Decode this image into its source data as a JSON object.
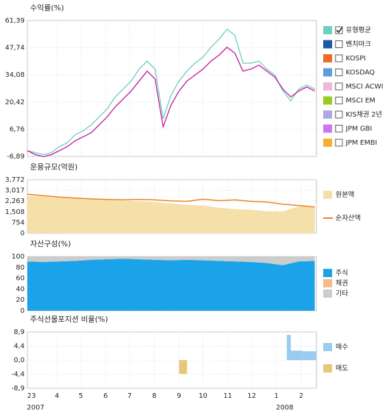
{
  "x_axis": {
    "xlim": [
      0,
      362
    ],
    "xticks": [
      {
        "value": 0,
        "label": "23"
      },
      {
        "value": 37,
        "label": "4"
      },
      {
        "value": 67,
        "label": "5"
      },
      {
        "value": 98,
        "label": "6"
      },
      {
        "value": 128,
        "label": "7"
      },
      {
        "value": 159,
        "label": "8"
      },
      {
        "value": 190,
        "label": "9"
      },
      {
        "value": 220,
        "label": "10"
      },
      {
        "value": 251,
        "label": "11"
      },
      {
        "value": 281,
        "label": "12"
      },
      {
        "value": 312,
        "label": "1"
      },
      {
        "value": 343,
        "label": "2"
      }
    ],
    "year_labels": [
      {
        "value": 0,
        "label": "2007"
      },
      {
        "value": 312,
        "label": "2008"
      }
    ]
  },
  "chart_data": [
    {
      "type": "line",
      "title": "수익률(%)",
      "ylim": [
        -6.89,
        61.39
      ],
      "yticks": [
        {
          "value": 61.39,
          "label": "61,39"
        },
        {
          "value": 47.74,
          "label": "47,74"
        },
        {
          "value": 34.08,
          "label": "34,08"
        },
        {
          "value": 20.42,
          "label": "20,42"
        },
        {
          "value": 6.76,
          "label": "6,76"
        },
        {
          "value": -6.89,
          "label": "-6,89"
        }
      ],
      "x": [
        0,
        10,
        20,
        30,
        40,
        50,
        60,
        70,
        80,
        90,
        100,
        110,
        120,
        130,
        140,
        150,
        160,
        170,
        180,
        190,
        200,
        210,
        220,
        230,
        240,
        250,
        260,
        270,
        280,
        290,
        300,
        310,
        320,
        330,
        340,
        350,
        360
      ],
      "series": [
        {
          "name": "유형평균",
          "color": "#6fcfbf",
          "checked": true,
          "values": [
            -4,
            -5,
            -6,
            -5,
            -2,
            0,
            4,
            6,
            9,
            13,
            17,
            23,
            27,
            31,
            37,
            41,
            37,
            12,
            24,
            31,
            36,
            40,
            43,
            48,
            52,
            57,
            54,
            40,
            40,
            41,
            37,
            34,
            26,
            21,
            27,
            29,
            27
          ]
        },
        {
          "color": "#c21f9e",
          "values": [
            -4,
            -6,
            -7,
            -6,
            -4,
            -2,
            1,
            3,
            5,
            9,
            13,
            18,
            22,
            26,
            31,
            36,
            32,
            8,
            19,
            26,
            31,
            34,
            37,
            41,
            44,
            48,
            45,
            36,
            37,
            39,
            36,
            33,
            27,
            23,
            26,
            28,
            26
          ]
        }
      ],
      "legend_items": [
        {
          "name": "벤치마크",
          "color": "#1a5aa0",
          "checked": false
        },
        {
          "name": "KOSPI",
          "color": "#f06a28",
          "checked": false
        },
        {
          "name": "KOSDAQ",
          "color": "#5a9fd8",
          "checked": false
        },
        {
          "name": "MSCI ACWI",
          "color": "#f0b8d8",
          "checked": false
        },
        {
          "name": "MSCI EM",
          "color": "#99cc22",
          "checked": false
        },
        {
          "name": "KIS채권 2년",
          "color": "#b0a8e0",
          "checked": false
        },
        {
          "name": "JPM GBI",
          "color": "#cc77ee",
          "checked": false
        },
        {
          "name": "JPM EMBI",
          "color": "#f5b030",
          "checked": false
        }
      ]
    },
    {
      "type": "area_line",
      "title": "운용규모(억원)",
      "ylim": [
        0,
        3772
      ],
      "yticks": [
        {
          "value": 3772,
          "label": "3,772"
        },
        {
          "value": 3017,
          "label": "3,017"
        },
        {
          "value": 2263,
          "label": "2,263"
        },
        {
          "value": 1508,
          "label": "1,508"
        },
        754,
        0
      ],
      "x": [
        0,
        20,
        40,
        60,
        80,
        100,
        120,
        140,
        160,
        180,
        200,
        220,
        240,
        260,
        280,
        300,
        320,
        340,
        360
      ],
      "series": [
        {
          "name": "원본액",
          "color": "#f6e0aa",
          "kind": "area",
          "values": [
            2650,
            2600,
            2500,
            2450,
            2400,
            2350,
            2300,
            2250,
            2200,
            2100,
            2000,
            1950,
            1800,
            1700,
            1650,
            1550,
            1550,
            1900,
            1900
          ]
        },
        {
          "name": "순자산액",
          "color": "#ef7d1a",
          "kind": "line",
          "values": [
            2750,
            2650,
            2550,
            2480,
            2420,
            2380,
            2350,
            2380,
            2350,
            2280,
            2250,
            2400,
            2300,
            2350,
            2250,
            2200,
            2050,
            1950,
            1850
          ]
        }
      ]
    },
    {
      "type": "stacked_area",
      "title": "자산구성(%)",
      "ylim": [
        0,
        100
      ],
      "yticks": [
        100,
        80,
        60,
        40,
        20,
        0
      ],
      "x": [
        0,
        20,
        40,
        60,
        80,
        100,
        120,
        140,
        160,
        180,
        200,
        220,
        240,
        260,
        280,
        300,
        320,
        340,
        360
      ],
      "series": [
        {
          "name": "주식",
          "color": "#1aa3e8",
          "values": [
            91,
            90,
            91,
            92,
            94,
            95,
            96,
            95,
            94,
            93,
            94,
            93,
            92,
            91,
            90,
            88,
            84,
            91,
            92
          ]
        },
        {
          "name": "채권",
          "color": "#f6bb8a",
          "values": [
            0,
            0,
            0,
            0,
            0,
            0,
            0,
            0,
            0,
            0,
            0,
            0,
            0,
            0,
            0,
            0,
            0,
            0,
            0
          ]
        },
        {
          "name": "기타",
          "color": "#cccccc",
          "values": [
            9,
            10,
            9,
            8,
            6,
            5,
            4,
            5,
            6,
            7,
            6,
            7,
            8,
            9,
            10,
            12,
            16,
            9,
            8
          ]
        }
      ]
    },
    {
      "type": "range_bar",
      "title": "주식선물포지션 비율(%)",
      "ylim": [
        -8.9,
        8.9
      ],
      "yticks": [
        {
          "value": 8.9,
          "label": "8,9"
        },
        {
          "value": 4.4,
          "label": "4,4"
        },
        {
          "value": 0,
          "label": "0,0"
        },
        {
          "value": -4.4,
          "label": "-4,4"
        },
        {
          "value": -8.9,
          "label": "-8,9"
        }
      ],
      "series": [
        {
          "name": "매수",
          "color": "#99ccf0",
          "x": [
            325,
            330,
            345
          ],
          "x_end": [
            330,
            345,
            362
          ],
          "values": [
            8.0,
            3.0,
            2.8
          ]
        },
        {
          "name": "매도",
          "color": "#e8c878",
          "x": [
            190
          ],
          "x_end": [
            200
          ],
          "values": [
            -4.4
          ]
        }
      ]
    }
  ]
}
